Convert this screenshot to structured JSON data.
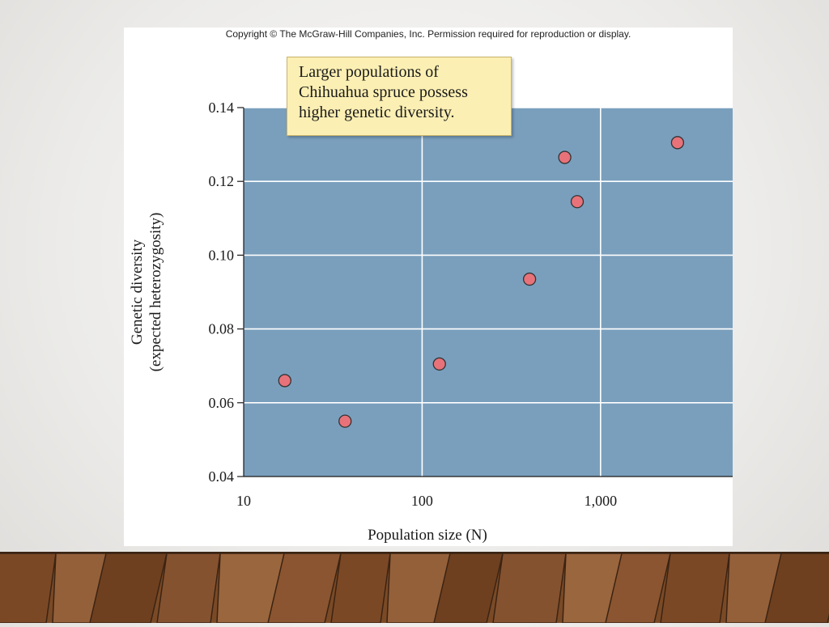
{
  "copyright": "Copyright © The McGraw-Hill Companies, Inc. Permission required for reproduction or display.",
  "callout": {
    "lines": [
      "Larger populations of",
      "Chihuahua spruce possess",
      "higher genetic diversity."
    ]
  },
  "colors": {
    "plot_background": "#7a9fbd",
    "gridline": "#ffffff",
    "point_fill": "#e8727a",
    "point_stroke": "#333333",
    "callout_background": "#fbefb3"
  },
  "chart_data": {
    "type": "scatter",
    "xlabel": "Population size (N)",
    "ylabel": [
      "Genetic diversity",
      "(expected heterozygosity)"
    ],
    "x_scale": "log",
    "xlim": [
      10,
      5500
    ],
    "ylim": [
      0.04,
      0.14
    ],
    "x_ticks": [
      10,
      100,
      1000
    ],
    "x_tick_labels": [
      "10",
      "100",
      "1,000"
    ],
    "y_ticks": [
      0.04,
      0.06,
      0.08,
      0.1,
      0.12,
      0.14
    ],
    "y_tick_labels": [
      "0.04",
      "0.06",
      "0.08",
      "0.10",
      "0.12",
      "0.14"
    ],
    "grid": true,
    "points": [
      {
        "x": 17,
        "y": 0.066
      },
      {
        "x": 37,
        "y": 0.055
      },
      {
        "x": 125,
        "y": 0.0705
      },
      {
        "x": 400,
        "y": 0.0935
      },
      {
        "x": 630,
        "y": 0.1265
      },
      {
        "x": 740,
        "y": 0.1145
      },
      {
        "x": 2700,
        "y": 0.1305
      }
    ]
  }
}
